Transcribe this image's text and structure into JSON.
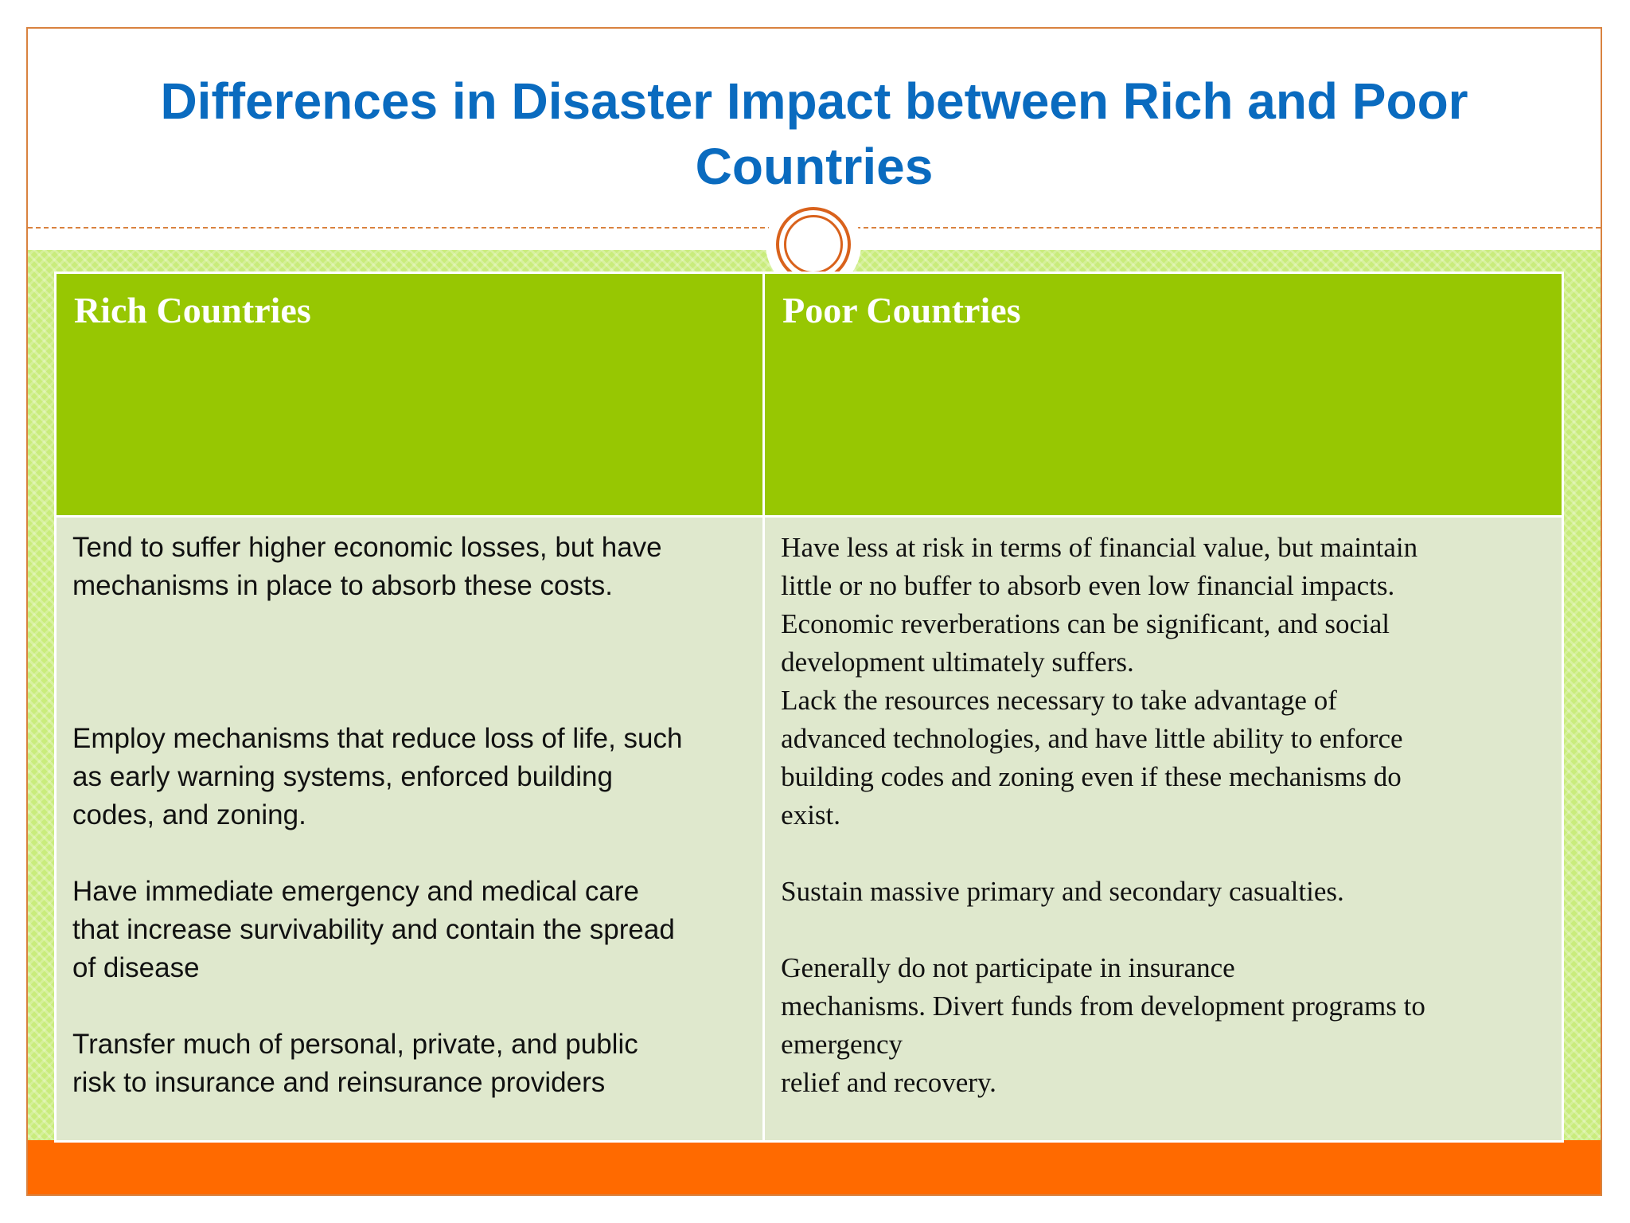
{
  "slide": {
    "title": "Differences in Disaster Impact between Rich and Poor Countries"
  },
  "table": {
    "rich_header": "Rich Countries",
    "poor_header": "Poor Countries",
    "rich_text": "Tend to suffer higher economic losses, but have\nmechanisms in place to absorb these costs.\n\n\n\nEmploy mechanisms that reduce loss of life, such\nas early warning systems, enforced building\ncodes, and zoning.\n\nHave immediate emergency and medical care\nthat increase survivability and contain the spread\nof disease\n\nTransfer much of personal, private, and public\nrisk to insurance and reinsurance providers",
    "poor_text": "Have less at risk in terms of financial value, but maintain\nlittle or no buffer to absorb even low financial impacts.\nEconomic reverberations can be significant, and social\ndevelopment ultimately suffers.\nLack the resources necessary to take advantage of\nadvanced technologies, and have little ability to enforce\nbuilding codes and zoning even if these mechanisms do\nexist.\n\nSustain massive primary and secondary casualties.\n\nGenerally do not participate in insurance\nmechanisms. Divert funds from development programs to\nemergency\nrelief and recovery."
  },
  "colors": {
    "title": "#0a6bbf",
    "header_green": "#97c702",
    "body_fill": "#dfe8cd",
    "accent_orange": "#ff6a00",
    "frame": "#d9823f"
  },
  "decor": {
    "divider_ornament": "double-ring-circle-icon"
  }
}
